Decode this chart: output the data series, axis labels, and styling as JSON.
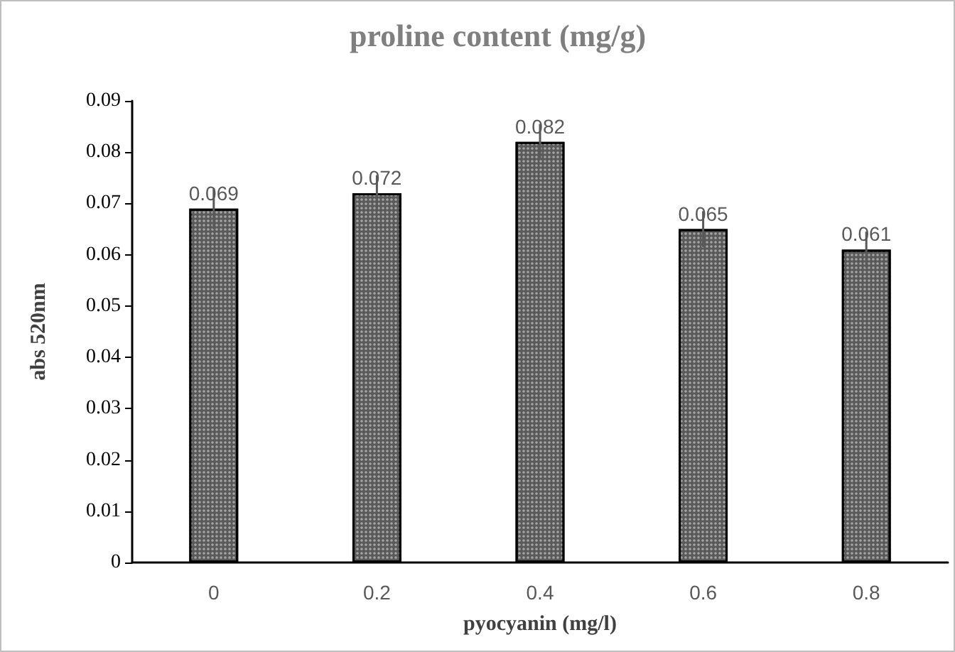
{
  "chart_data": {
    "type": "bar",
    "title": "proline content (mg/g)",
    "xlabel": "pyocyanin (mg/l)",
    "ylabel": "abs 520nm",
    "categories": [
      "0",
      "0.2",
      "0.4",
      "0.6",
      "0.8"
    ],
    "values": [
      0.069,
      0.072,
      0.082,
      0.065,
      0.061
    ],
    "errors": [
      0.004,
      0.0035,
      0.0035,
      0.0035,
      0.0035
    ],
    "color": "#5a5a5a",
    "data_labels": true,
    "ylim": [
      0,
      0.09
    ],
    "yticks": [
      0,
      0.01,
      0.02,
      0.03,
      0.04,
      0.05,
      0.06,
      0.07,
      0.08,
      0.09
    ],
    "grid": false
  }
}
